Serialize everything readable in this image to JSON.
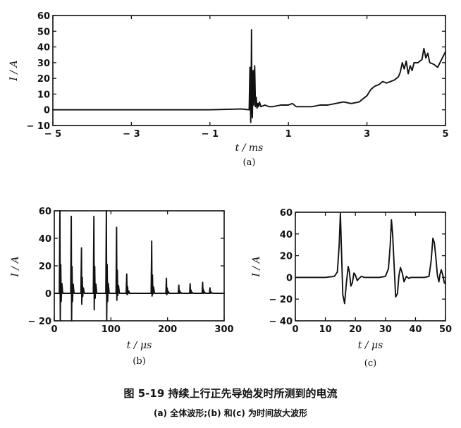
{
  "figure": {
    "caption": "图 5-19   持续上行正先导始发时所测到的电流",
    "subcaption": "(a) 全体波形;(b) 和(c) 为时间放大波形"
  },
  "chart_data": [
    {
      "id": "a",
      "type": "line",
      "panel_label": "(a)",
      "xlabel": "t / ms",
      "ylabel": "I / A",
      "xlim": [
        -5,
        5
      ],
      "ylim": [
        -10,
        60
      ],
      "xticks": [
        -5,
        -3,
        -1,
        1,
        3,
        5
      ],
      "xtick_labels": [
        "− 5",
        "− 3",
        "− 1",
        "1",
        "3",
        "5"
      ],
      "yticks": [
        -10,
        0,
        10,
        20,
        30,
        40,
        50,
        60
      ],
      "ytick_labels": [
        "− 10",
        "0",
        "10",
        "20",
        "30",
        "40",
        "50",
        "60"
      ],
      "grid": false,
      "series": [
        {
          "x": [
            -5,
            -4,
            -3,
            -2,
            -1,
            -0.2,
            0,
            0.02,
            0.04,
            0.05,
            0.06,
            0.07,
            0.08,
            0.1,
            0.12,
            0.14,
            0.16,
            0.18,
            0.2,
            0.22,
            0.24,
            0.26,
            0.3,
            0.4,
            0.5,
            0.6,
            0.8,
            1.0,
            1.1,
            1.2,
            1.4,
            1.6,
            1.8,
            2.0,
            2.2,
            2.4,
            2.6,
            2.8,
            2.9,
            3.0,
            3.1,
            3.2,
            3.3,
            3.4,
            3.5,
            3.6,
            3.7,
            3.8,
            3.85,
            3.9,
            3.95,
            4.0,
            4.05,
            4.1,
            4.15,
            4.2,
            4.3,
            4.4,
            4.45,
            4.5,
            4.55,
            4.6,
            4.7,
            4.8,
            4.9,
            5.0
          ],
          "y": [
            0,
            0,
            0,
            0,
            0,
            0.5,
            0,
            27,
            -8,
            10,
            51,
            2,
            -5,
            25,
            3,
            28,
            2,
            8,
            1,
            4,
            2,
            5,
            2,
            3,
            2,
            2,
            3,
            3,
            4,
            2,
            2,
            2,
            3,
            3,
            4,
            5,
            4,
            5,
            7,
            9,
            13,
            15,
            16,
            18,
            17,
            18,
            19,
            21,
            24,
            30,
            26,
            31,
            23,
            28,
            25,
            30,
            30,
            32,
            39,
            33,
            36,
            30,
            29,
            27,
            32,
            37
          ]
        }
      ]
    },
    {
      "id": "b",
      "type": "line",
      "panel_label": "(b)",
      "xlabel": "t / μs",
      "ylabel": "I / A",
      "xlim": [
        0,
        300
      ],
      "ylim": [
        -20,
        60
      ],
      "xticks": [
        0,
        100,
        200,
        300
      ],
      "xtick_labels": [
        "0",
        "100",
        "200",
        "300"
      ],
      "yticks": [
        -20,
        0,
        20,
        40,
        60
      ],
      "ytick_labels": [
        "− 20",
        "0",
        "20",
        "40",
        "60"
      ],
      "grid": false,
      "pulses": [
        {
          "t": 10,
          "peak": 60,
          "trough": -20
        },
        {
          "t": 30,
          "peak": 56,
          "trough": -20
        },
        {
          "t": 48,
          "peak": 33,
          "trough": -8
        },
        {
          "t": 70,
          "peak": 56,
          "trough": -12
        },
        {
          "t": 92,
          "peak": 60,
          "trough": -20
        },
        {
          "t": 110,
          "peak": 48,
          "trough": -5
        },
        {
          "t": 128,
          "peak": 14,
          "trough": -1
        },
        {
          "t": 172,
          "peak": 38,
          "trough": -2
        },
        {
          "t": 198,
          "peak": 11,
          "trough": -1
        },
        {
          "t": 220,
          "peak": 6,
          "trough": 0
        },
        {
          "t": 240,
          "peak": 7,
          "trough": 0
        },
        {
          "t": 262,
          "peak": 8,
          "trough": 0
        },
        {
          "t": 275,
          "peak": 4,
          "trough": 0
        }
      ]
    },
    {
      "id": "c",
      "type": "line",
      "panel_label": "(c)",
      "xlabel": "t / μs",
      "ylabel": "I / A",
      "xlim": [
        0,
        50
      ],
      "ylim": [
        -40,
        60
      ],
      "xticks": [
        0,
        10,
        20,
        30,
        40,
        50
      ],
      "xtick_labels": [
        "0",
        "10",
        "20",
        "30",
        "40",
        "50"
      ],
      "yticks": [
        -40,
        -20,
        0,
        20,
        40,
        60
      ],
      "ytick_labels": [
        "− 40",
        "− 20",
        "0",
        "20",
        "40",
        "60"
      ],
      "grid": false,
      "series": [
        {
          "x": [
            0,
            10,
            13,
            14,
            14.6,
            15,
            15.3,
            15.8,
            16.4,
            17,
            17.6,
            18,
            18.5,
            19,
            19.5,
            20,
            20.6,
            21.2,
            22,
            23,
            24,
            26,
            28,
            30,
            31,
            31.6,
            32,
            32.4,
            32.9,
            33.4,
            34,
            34.5,
            35,
            35.6,
            36.2,
            37,
            37.8,
            38.5,
            39.5,
            41,
            43,
            44.5,
            45.2,
            45.8,
            46.3,
            46.8,
            47.3,
            47.8,
            48.2,
            48.6,
            49.1,
            49.6,
            50
          ],
          "y": [
            0,
            0,
            1,
            5,
            30,
            59,
            30,
            -16,
            -24,
            -5,
            10,
            5,
            -8,
            -5,
            4,
            2,
            -3,
            -1,
            1,
            0,
            0,
            0,
            0,
            1,
            8,
            30,
            53,
            40,
            10,
            -18,
            -15,
            2,
            9,
            4,
            -4,
            1,
            -1,
            0,
            0,
            0,
            0,
            1,
            15,
            36,
            32,
            18,
            2,
            -4,
            3,
            7,
            2,
            -5,
            -6
          ]
        }
      ]
    }
  ]
}
